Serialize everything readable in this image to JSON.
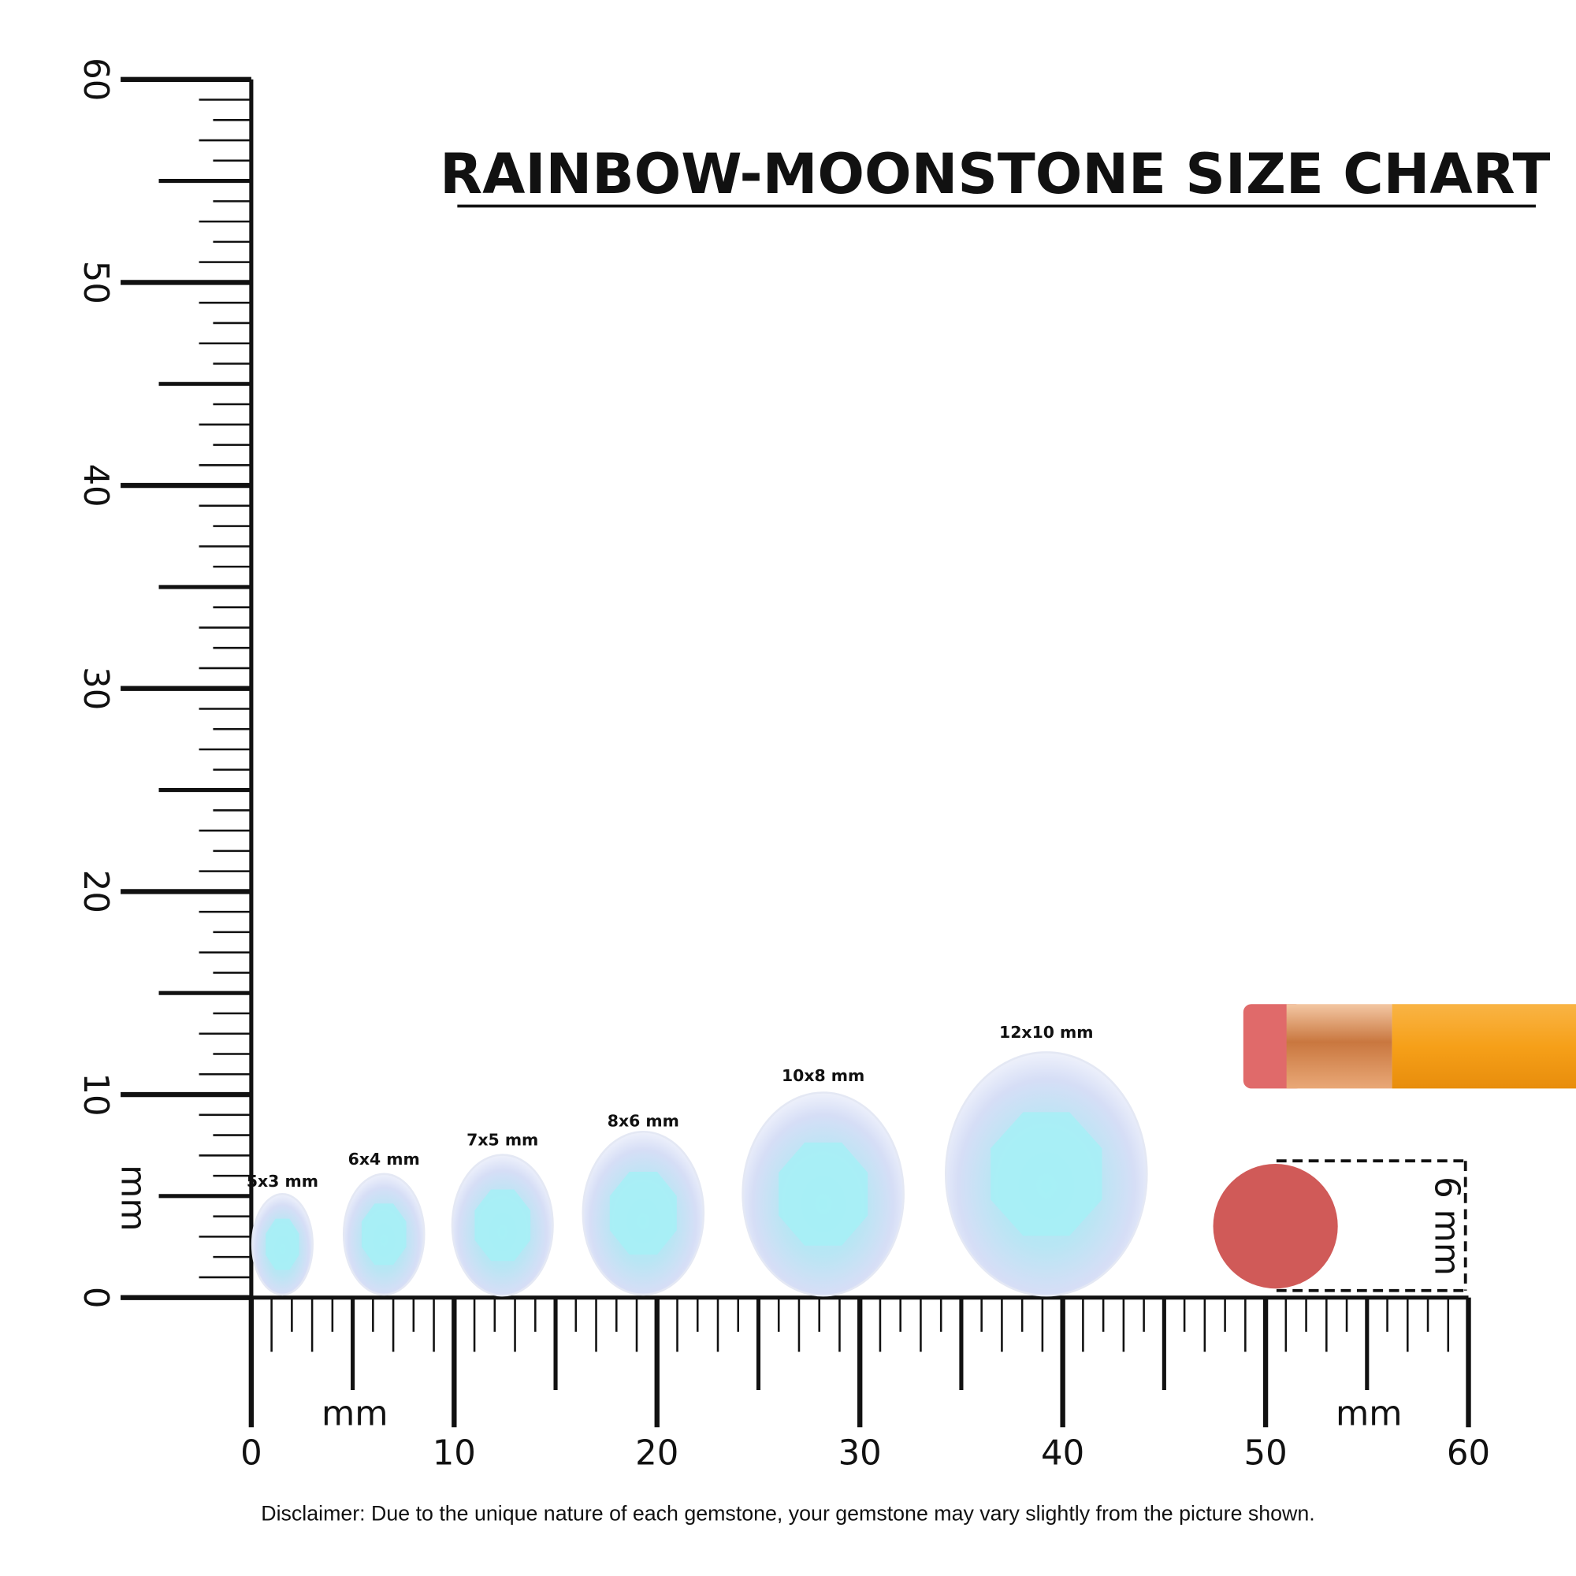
{
  "header": {
    "title": "RAINBOW-MOONSTONE SIZE CHART"
  },
  "ruler": {
    "vertical_labels": [
      0,
      10,
      20,
      30,
      40,
      50,
      60
    ],
    "horizontal_labels": [
      0,
      10,
      20,
      30,
      40,
      50,
      60
    ],
    "vertical_unit": "mm",
    "horizontal_units": [
      "mm",
      "mm"
    ]
  },
  "gems": [
    {
      "label": "5x3 mm"
    },
    {
      "label": "6x4 mm"
    },
    {
      "label": "7x5 mm"
    },
    {
      "label": "8x6 mm"
    },
    {
      "label": "10x8 mm"
    },
    {
      "label": "12x10 mm"
    }
  ],
  "reference": {
    "label": "6 mm"
  },
  "footer": {
    "disclaimer": "Disclaimer: Due to the unique nature of each gemstone, your gemstone may vary slightly from the picture shown."
  }
}
